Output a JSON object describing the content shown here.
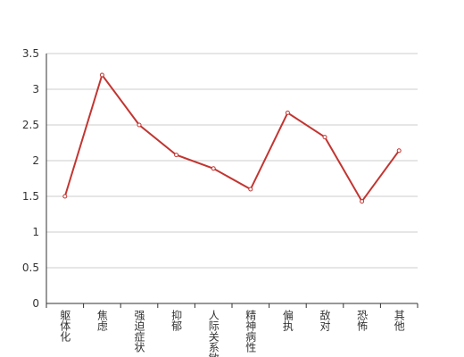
{
  "chart_data": {
    "type": "line",
    "categories": [
      "躯体化",
      "焦虑",
      "强迫症状",
      "抑郁",
      "人际关系敏感",
      "精神病性",
      "偏执",
      "敌对",
      "恐怖",
      "其他"
    ],
    "values": [
      1.5,
      3.2,
      2.5,
      2.08,
      1.89,
      1.6,
      2.67,
      2.33,
      1.43,
      2.14
    ],
    "color": "#c23531",
    "ylim": [
      0,
      3.5
    ],
    "yticks": [
      0,
      0.5,
      1,
      1.5,
      2,
      2.5,
      3,
      3.5
    ],
    "grid": true
  }
}
